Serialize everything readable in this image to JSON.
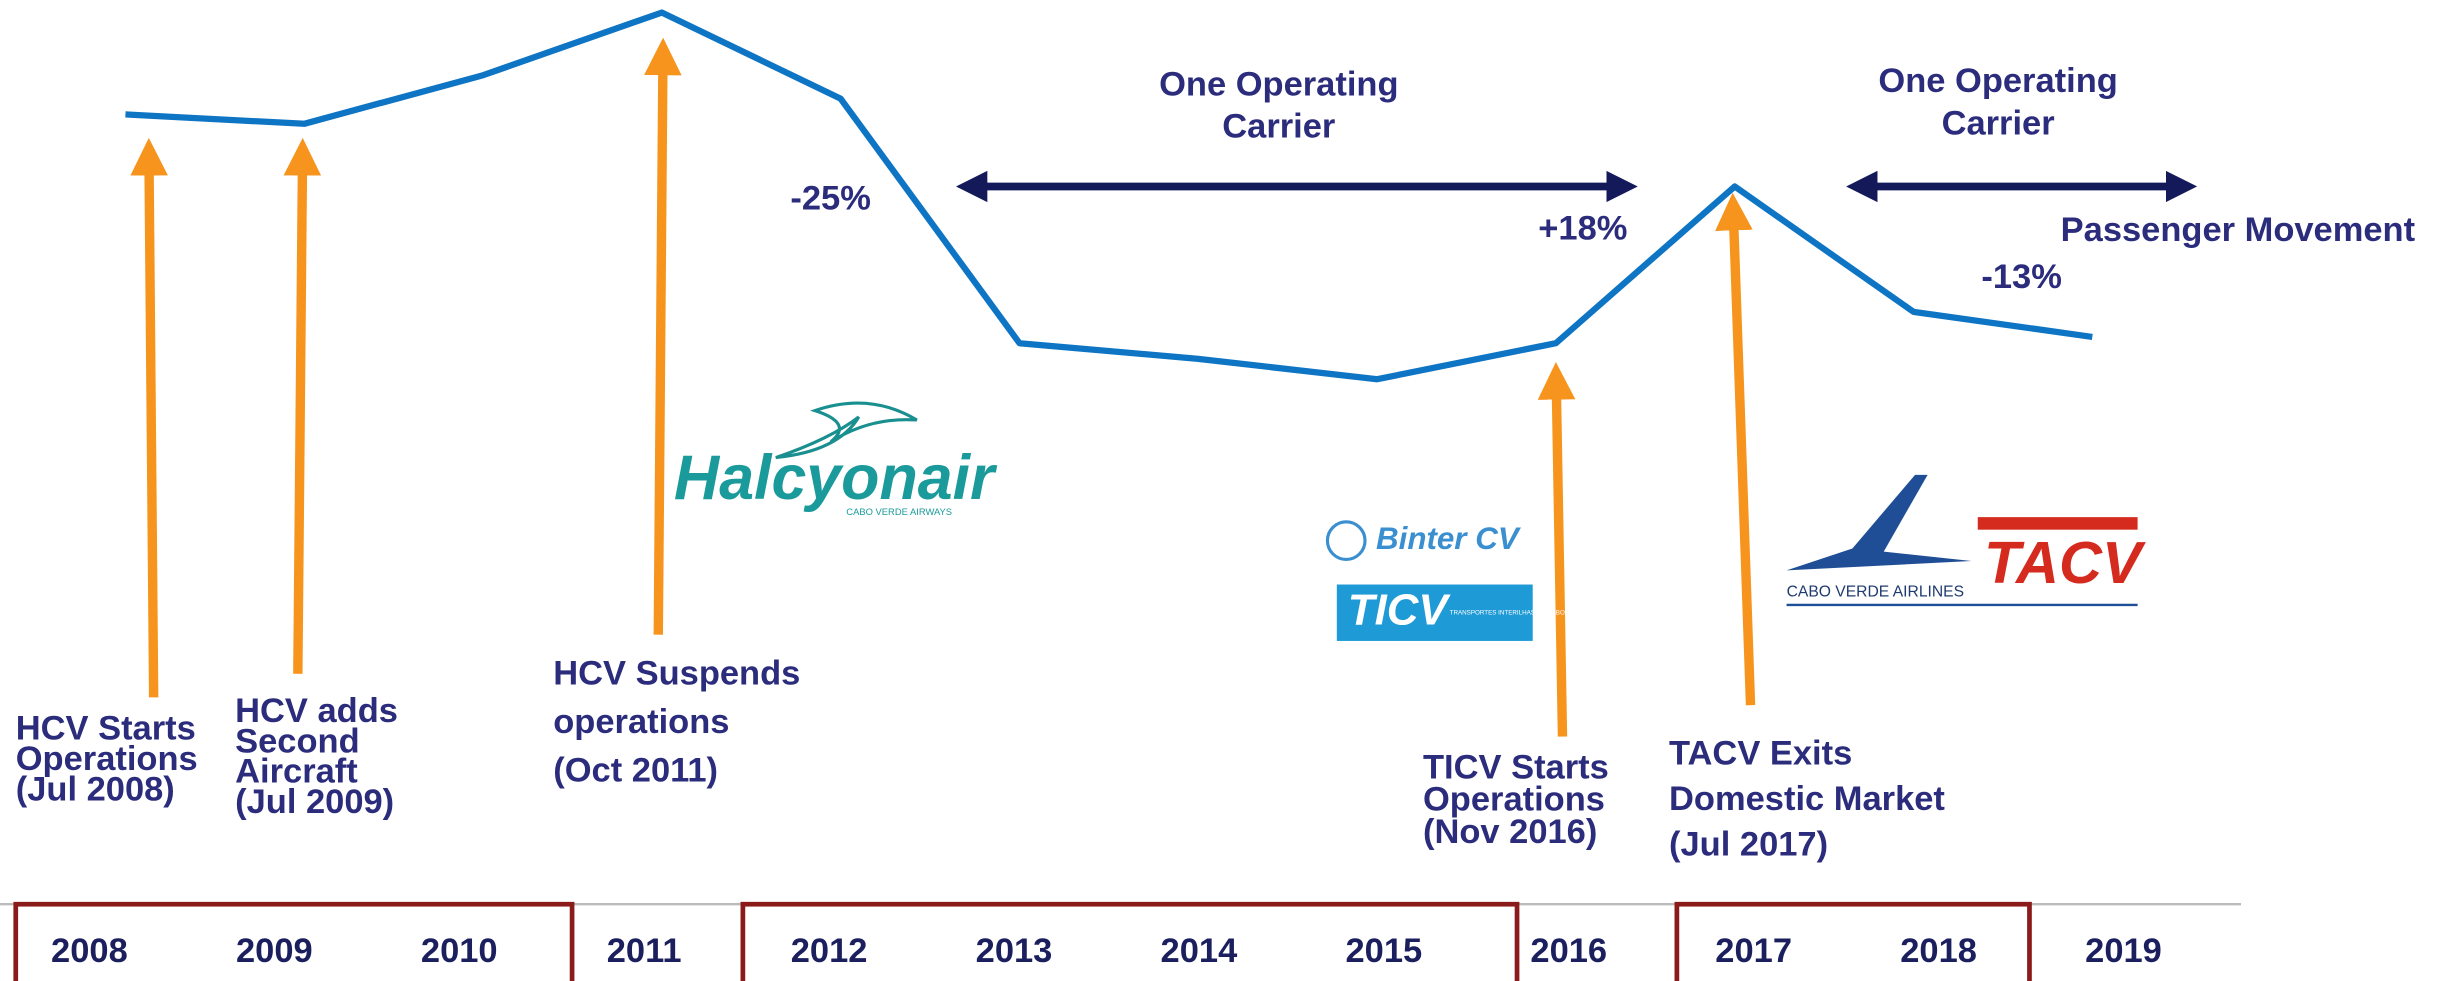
{
  "chart_data": {
    "type": "line",
    "categories": [
      "2008",
      "2009",
      "2010",
      "2011",
      "2012",
      "2013",
      "2014",
      "2015",
      "2016",
      "2017",
      "2018",
      "2019"
    ],
    "values": [
      187,
      181,
      212,
      252,
      197,
      41,
      31,
      18,
      41,
      141,
      61,
      45
    ],
    "color": "#0e74c4",
    "ylim": [
      0,
      260
    ],
    "annotations": [
      "-25%",
      "+18%",
      "-13%",
      "Passenger Movement"
    ],
    "carrier_notes": [
      [
        "One Operating",
        "Carrier"
      ],
      [
        "One Operating",
        "Carrier"
      ]
    ],
    "events": [
      [
        "HCV Starts",
        "Operations",
        "(Jul 2008)"
      ],
      [
        "HCV adds",
        "Second",
        "Aircraft",
        "(Jul 2009)"
      ],
      [
        "HCV Suspends",
        "operations",
        "(Oct 2011)"
      ],
      [
        "TICV Starts",
        "Operations",
        "(Nov 2016)"
      ],
      [
        "TACV Exits",
        "Domestic Market",
        "(Jul 2017)"
      ]
    ],
    "logos": {
      "halcyon": "Halcyonair",
      "halcyon_sub": "CABO VERDE AIRWAYS",
      "binter": "Binter CV",
      "ticv": "TICV",
      "ticv_sub": "TRANSPORTES INTERILHAS DE CABO VERDE",
      "cva": "CABO VERDE AIRLINES",
      "tacv": "TACV"
    }
  }
}
